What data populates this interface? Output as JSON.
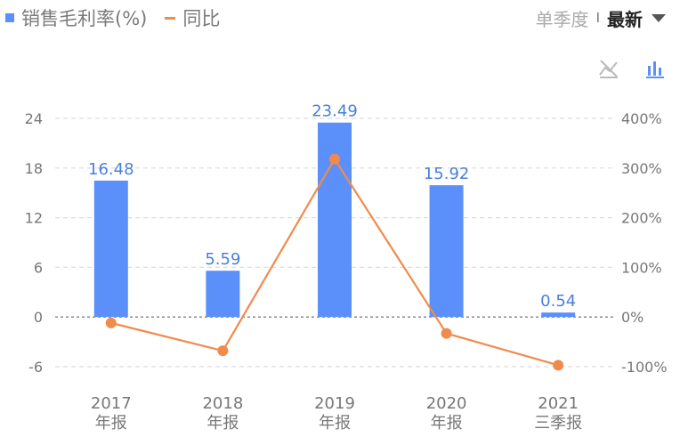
{
  "legend": {
    "bar_label": "销售毛利率(%)",
    "line_label": "同比"
  },
  "toggle": {
    "option1": "单季度",
    "separator": "I",
    "option2": "最新"
  },
  "icons": {
    "line_toggle": "line-chart-off-icon",
    "bar_toggle": "bar-chart-icon",
    "dropdown": "chevron-down-icon"
  },
  "colors": {
    "bar": "#5b8ff9",
    "line": "#f08b4c",
    "label": "#4a7fd9"
  },
  "chart_data": {
    "type": "bar",
    "categories": [
      [
        "2017",
        "年报"
      ],
      [
        "2018",
        "年报"
      ],
      [
        "2019",
        "年报"
      ],
      [
        "2020",
        "年报"
      ],
      [
        "2021",
        "三季报"
      ]
    ],
    "series": [
      {
        "name": "销售毛利率(%)",
        "type": "bar",
        "values": [
          16.48,
          5.59,
          23.49,
          15.92,
          0.54
        ],
        "axis": "left"
      },
      {
        "name": "同比",
        "type": "line",
        "values": [
          -12,
          -68,
          318,
          -33,
          -97
        ],
        "axis": "right"
      }
    ],
    "y_left": {
      "ticks": [
        "24",
        "18",
        "12",
        "6",
        "0",
        "-6"
      ],
      "min": -6,
      "max": 24
    },
    "y_right": {
      "ticks": [
        "400%",
        "300%",
        "200%",
        "100%",
        "0%",
        "-100%"
      ],
      "min": -100,
      "max": 400
    },
    "grid": true,
    "zero_line": "dotted"
  }
}
